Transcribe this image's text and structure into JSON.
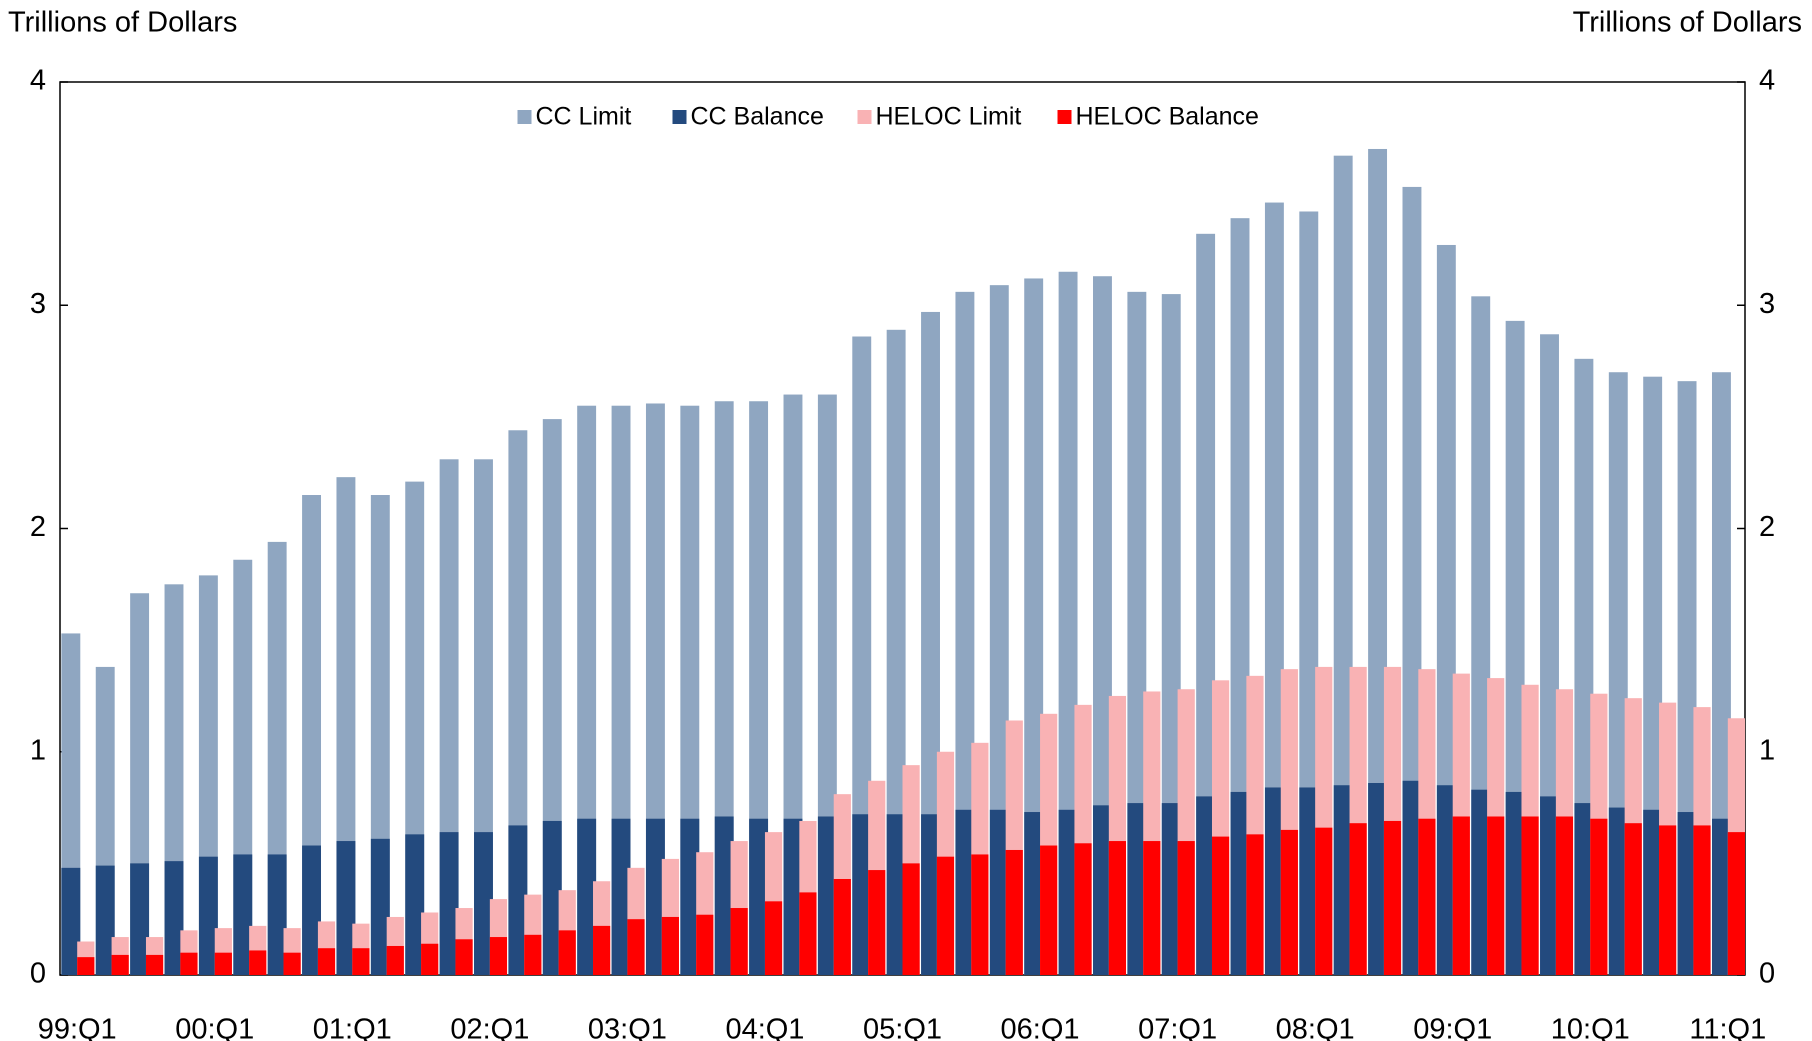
{
  "chart_data": {
    "type": "bar",
    "y_label": "Trillions of Dollars",
    "y2_label": "Trillions of Dollars",
    "categories": [
      "99:Q1",
      null,
      null,
      null,
      "00:Q1",
      null,
      null,
      null,
      "01:Q1",
      null,
      null,
      null,
      "02:Q1",
      null,
      null,
      null,
      "03:Q1",
      null,
      null,
      null,
      "04:Q1",
      null,
      null,
      null,
      "05:Q1",
      null,
      null,
      null,
      "06:Q1",
      null,
      null,
      null,
      "07:Q1",
      null,
      null,
      null,
      "08:Q1",
      null,
      null,
      null,
      "09:Q1",
      null,
      null,
      null,
      "10:Q1",
      null,
      null,
      null,
      "11:Q1"
    ],
    "series": [
      {
        "name": "CC Limit",
        "color": "#8FA6C1",
        "values": [
          1.53,
          1.38,
          1.71,
          1.75,
          1.79,
          1.86,
          1.94,
          2.15,
          2.23,
          2.15,
          2.21,
          2.31,
          2.31,
          2.44,
          2.49,
          2.55,
          2.55,
          2.56,
          2.55,
          2.57,
          2.57,
          2.6,
          2.6,
          2.86,
          2.89,
          2.97,
          3.06,
          3.09,
          3.12,
          3.15,
          3.13,
          3.06,
          3.05,
          3.32,
          3.39,
          3.46,
          3.42,
          3.67,
          3.7,
          3.53,
          3.27,
          3.04,
          2.93,
          2.87,
          2.76,
          2.7,
          2.68,
          2.66,
          2.7
        ]
      },
      {
        "name": "CC Balance",
        "color": "#234A7E",
        "values": [
          0.48,
          0.49,
          0.5,
          0.51,
          0.53,
          0.54,
          0.54,
          0.58,
          0.6,
          0.61,
          0.63,
          0.64,
          0.64,
          0.67,
          0.69,
          0.7,
          0.7,
          0.7,
          0.7,
          0.71,
          0.7,
          0.7,
          0.71,
          0.72,
          0.72,
          0.72,
          0.74,
          0.74,
          0.73,
          0.74,
          0.76,
          0.77,
          0.77,
          0.8,
          0.82,
          0.84,
          0.84,
          0.85,
          0.86,
          0.87,
          0.85,
          0.83,
          0.82,
          0.8,
          0.77,
          0.75,
          0.74,
          0.73,
          0.7
        ]
      },
      {
        "name": "HELOC Limit",
        "color": "#F9B2B4",
        "values": [
          0.15,
          0.17,
          0.17,
          0.2,
          0.21,
          0.22,
          0.21,
          0.24,
          0.23,
          0.26,
          0.28,
          0.3,
          0.34,
          0.36,
          0.38,
          0.42,
          0.48,
          0.52,
          0.55,
          0.6,
          0.64,
          0.69,
          0.81,
          0.87,
          0.94,
          1.0,
          1.04,
          1.14,
          1.17,
          1.21,
          1.25,
          1.27,
          1.28,
          1.32,
          1.34,
          1.37,
          1.38,
          1.38,
          1.38,
          1.37,
          1.35,
          1.33,
          1.3,
          1.28,
          1.26,
          1.24,
          1.22,
          1.2,
          1.15
        ]
      },
      {
        "name": "HELOC Balance",
        "color": "#FF0000",
        "values": [
          0.08,
          0.09,
          0.09,
          0.1,
          0.1,
          0.11,
          0.1,
          0.12,
          0.12,
          0.13,
          0.14,
          0.16,
          0.17,
          0.18,
          0.2,
          0.22,
          0.25,
          0.26,
          0.27,
          0.3,
          0.33,
          0.37,
          0.43,
          0.47,
          0.5,
          0.53,
          0.54,
          0.56,
          0.58,
          0.59,
          0.6,
          0.6,
          0.6,
          0.62,
          0.63,
          0.65,
          0.66,
          0.68,
          0.69,
          0.7,
          0.71,
          0.71,
          0.71,
          0.71,
          0.7,
          0.68,
          0.67,
          0.67,
          0.64
        ]
      }
    ],
    "ylim": [
      0,
      4
    ],
    "yticks": [
      0,
      1,
      2,
      3,
      4
    ],
    "y2lim": [
      0,
      4
    ],
    "y2ticks": [
      0,
      1,
      2,
      3,
      4
    ],
    "legend": "top"
  }
}
